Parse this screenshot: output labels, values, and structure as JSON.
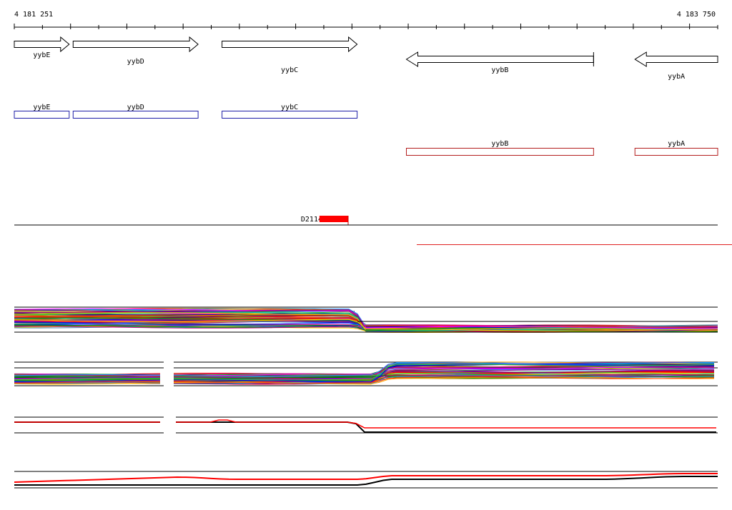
{
  "ruler": {
    "start_label": "4 181 251",
    "end_label": "4 183 750",
    "start": 4181251,
    "end": 4183750
  },
  "genes_forward": [
    {
      "label": "yybE",
      "start": 4181251,
      "end": 4181446
    },
    {
      "label": "yybD",
      "start": 4181460,
      "end": 4181904
    },
    {
      "label": "yybC",
      "start": 4181989,
      "end": 4182469
    }
  ],
  "genes_reverse": [
    {
      "label": "yybB",
      "start": 4182644,
      "end": 4183309
    },
    {
      "label": "yybA",
      "start": 4183456,
      "end": 4183750
    }
  ],
  "annotation_forward": [
    {
      "label": "yybE",
      "start": 4181251,
      "end": 4181446
    },
    {
      "label": "yybD",
      "start": 4181460,
      "end": 4181904
    },
    {
      "label": "yybC",
      "start": 4181989,
      "end": 4182469
    }
  ],
  "annotation_reverse": [
    {
      "label": "yybB",
      "start": 4182644,
      "end": 4183309
    },
    {
      "label": "yybA",
      "start": 4183456,
      "end": 4183750
    }
  ],
  "feature": {
    "label": "D2114",
    "start": 4182335,
    "end": 4182437
  },
  "colors": {
    "forward_box": "#1f1fa8",
    "reverse_box": "#b41e1e",
    "feature": "#ff0000",
    "ruler": "#000000"
  }
}
